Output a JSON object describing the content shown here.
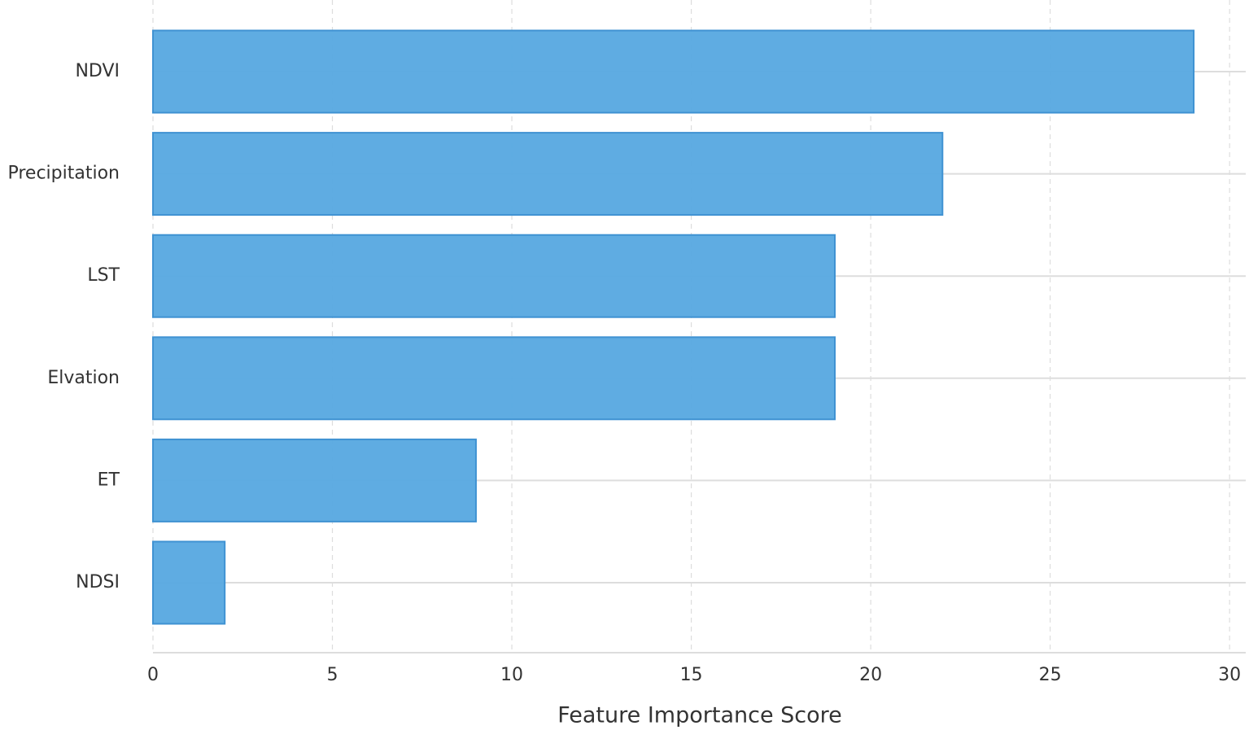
{
  "chart_data": {
    "type": "barh",
    "x_label": "Feature Importance Score",
    "categories": [
      "NDVI",
      "Precipitation",
      "LST",
      "Elvation",
      "ET",
      "NDSI"
    ],
    "values": [
      29,
      22,
      19,
      19,
      9,
      2
    ],
    "color": "#5aa9e1",
    "xlim": [
      0,
      30.45
    ],
    "xticks": [
      0,
      5,
      10,
      15,
      20,
      25,
      30
    ],
    "grid": true
  }
}
